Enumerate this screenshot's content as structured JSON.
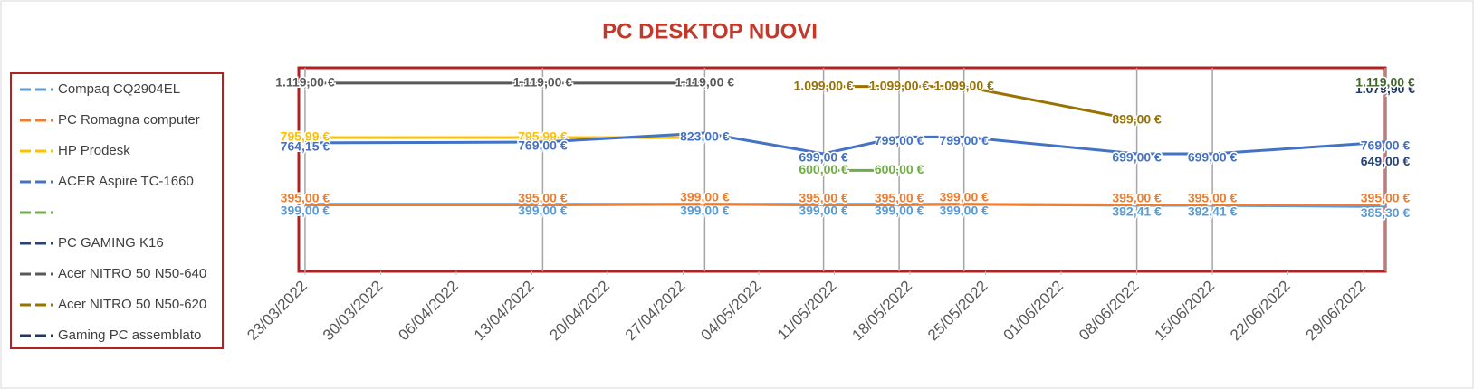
{
  "chart_data": {
    "type": "line",
    "title": "PC DESKTOP NUOVI",
    "x": [
      "2022-03-23",
      "2022-04-14",
      "2022-04-29",
      "2022-05-10",
      "2022-05-17",
      "2022-05-23",
      "2022-06-08",
      "2022-06-15",
      "2022-07-01"
    ],
    "xlim": [
      "2022-03-22",
      "2022-07-01"
    ],
    "xticks": [
      {
        "value": "2022-03-23",
        "label": "23/03/2022"
      },
      {
        "value": "2022-03-30",
        "label": "30/03/2022"
      },
      {
        "value": "2022-04-06",
        "label": "06/04/2022"
      },
      {
        "value": "2022-04-13",
        "label": "13/04/2022"
      },
      {
        "value": "2022-04-20",
        "label": "20/04/2022"
      },
      {
        "value": "2022-04-27",
        "label": "27/04/2022"
      },
      {
        "value": "2022-05-04",
        "label": "04/05/2022"
      },
      {
        "value": "2022-05-11",
        "label": "11/05/2022"
      },
      {
        "value": "2022-05-18",
        "label": "18/05/2022"
      },
      {
        "value": "2022-05-25",
        "label": "25/05/2022"
      },
      {
        "value": "2022-06-01",
        "label": "01/06/2022"
      },
      {
        "value": "2022-06-08",
        "label": "08/06/2022"
      },
      {
        "value": "2022-06-15",
        "label": "15/06/2022"
      },
      {
        "value": "2022-06-22",
        "label": "22/06/2022"
      },
      {
        "value": "2022-06-29",
        "label": "29/06/2022"
      }
    ],
    "ylim": [
      0,
      1210
    ],
    "drop_lines": true,
    "legend": "left",
    "series": [
      {
        "name": "Compaq CQ2904EL",
        "color": "#5b9bd5",
        "values": [
          399,
          399,
          399,
          399,
          399,
          399,
          392.41,
          392.41,
          385.3
        ],
        "value_labels": [
          "399,00 €",
          "399,00 €",
          "399,00 €",
          "399,00 €",
          "399,00 €",
          "399,00 €",
          "392,41 €",
          "392,41 €",
          "385,30 €"
        ]
      },
      {
        "name": "PC Romagna computer",
        "color": "#ed7d31",
        "values": [
          395,
          395,
          399,
          395,
          395,
          399,
          395,
          395,
          395
        ],
        "value_labels": [
          "395,00 €",
          "395,00 €",
          "399,00 €",
          "395,00 €",
          "395,00 €",
          "399,00 €",
          "395,00 €",
          "395,00 €",
          "395,00 €"
        ]
      },
      {
        "name": "HP Prodesk",
        "color": "#ffc000",
        "values": [
          795.99,
          795.99,
          795,
          null,
          null,
          null,
          null,
          null,
          null
        ],
        "value_labels": [
          "795,99 €",
          "795,99 €",
          "795,00 €",
          null,
          null,
          null,
          null,
          null,
          null
        ]
      },
      {
        "name": "ACER Aspire TC-1660",
        "color": "#4472c4",
        "values": [
          764.15,
          769,
          823,
          699,
          799,
          799,
          699,
          699,
          769
        ],
        "value_labels": [
          "764,15 €",
          "769,00 €",
          "823,00 €",
          "699,00 €",
          "799,00 €",
          "799,00 €",
          "699,00 €",
          "699,00 €",
          "769,00 €"
        ]
      },
      {
        "name": null,
        "color": "#70ad47",
        "values": [
          null,
          null,
          null,
          600,
          600,
          null,
          null,
          null,
          null
        ],
        "value_labels": [
          null,
          null,
          null,
          "600,00 €",
          "600,00 €",
          null,
          null,
          null,
          null
        ]
      },
      {
        "name": "PC GAMING K16",
        "color": "#264478",
        "values": [
          null,
          null,
          null,
          null,
          null,
          null,
          null,
          null,
          649
        ],
        "value_labels": [
          null,
          null,
          null,
          null,
          null,
          null,
          null,
          null,
          "649,00 €"
        ]
      },
      {
        "name": "Acer NITRO 50 N50-640",
        "color": "#595959",
        "values": [
          1119,
          1119,
          1119,
          null,
          null,
          null,
          null,
          null,
          null
        ],
        "value_labels": [
          "1.119,00 €",
          "1.119,00 €",
          "1.119,00 €",
          null,
          null,
          null,
          null,
          null,
          null
        ]
      },
      {
        "name": "Acer NITRO 50 N50-620",
        "color": "#997300",
        "values": [
          null,
          null,
          null,
          1099,
          1099,
          1099,
          899,
          null,
          null
        ],
        "value_labels": [
          null,
          null,
          null,
          "1.099,00 €",
          "1.099,00 €",
          "1.099,00 €",
          "899,00 €",
          null,
          null
        ]
      },
      {
        "name": "Gaming PC assemblato",
        "color": "#203864",
        "values": [
          null,
          null,
          null,
          null,
          null,
          null,
          null,
          null,
          1079.9
        ],
        "value_labels": [
          null,
          null,
          null,
          null,
          null,
          null,
          null,
          null,
          "1.079,90 €"
        ]
      },
      {
        "color": "#43682b",
        "values": [
          null,
          null,
          null,
          null,
          null,
          null,
          null,
          null,
          1119
        ],
        "value_labels": [
          null,
          null,
          null,
          null,
          null,
          null,
          null,
          null,
          "1.119,00 €"
        ]
      }
    ]
  }
}
